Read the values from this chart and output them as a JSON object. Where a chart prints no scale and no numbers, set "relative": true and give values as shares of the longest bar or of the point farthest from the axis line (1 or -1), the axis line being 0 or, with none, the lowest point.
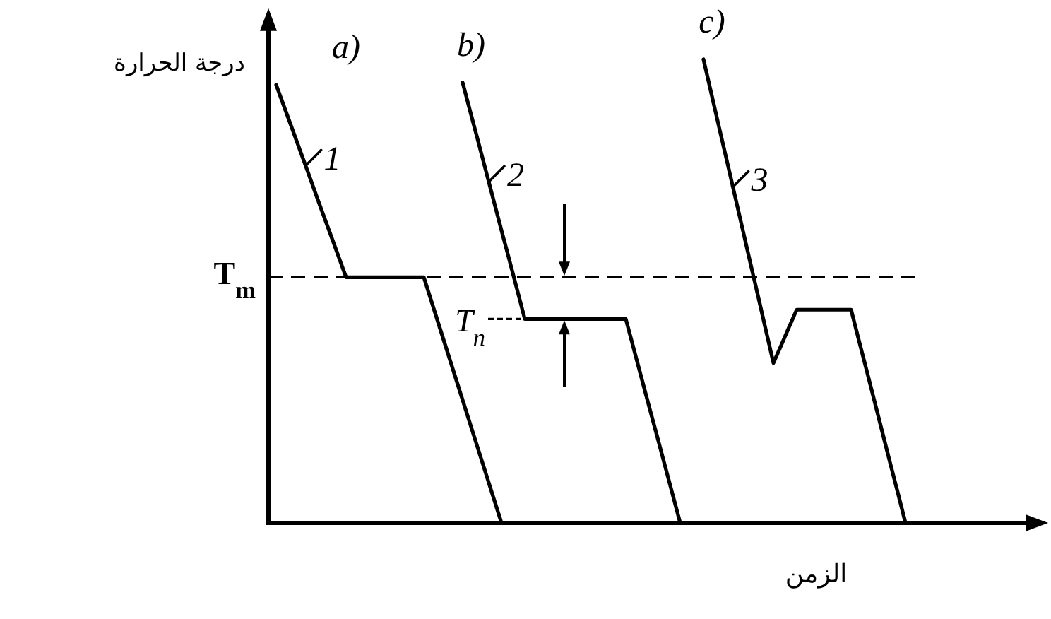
{
  "chart_data": {
    "type": "line",
    "relative": true,
    "xlabel": "الزمن",
    "ylabel": "درجة الحرارة",
    "categories": [
      null,
      null,
      null,
      null,
      null,
      null,
      null,
      null,
      null,
      null,
      null,
      null,
      null,
      null,
      null,
      null,
      null,
      null,
      null,
      null,
      null,
      null,
      null,
      null,
      null,
      null,
      null,
      null,
      null,
      null,
      null,
      null,
      null,
      null,
      null,
      null,
      null,
      null,
      null,
      null,
      null,
      null,
      null,
      null,
      null,
      null,
      null,
      null,
      null,
      null,
      null,
      null,
      null,
      null,
      null,
      null,
      null,
      null,
      null,
      null,
      null,
      null,
      null,
      null,
      null,
      null,
      null,
      null,
      null,
      null,
      null,
      null,
      null,
      null,
      null,
      null,
      null,
      null,
      null,
      null,
      null,
      null,
      null,
      null,
      null,
      null,
      null,
      null,
      null,
      null,
      null,
      null,
      null,
      null,
      null,
      null,
      null,
      null,
      null,
      null,
      null
    ],
    "series": [
      {
        "name": "1",
        "color": "#000000",
        "values": [
          null,
          0.945,
          0.899,
          0.853,
          0.807,
          0.761,
          0.714,
          0.668,
          0.622,
          0.576,
          0.53,
          0.53,
          0.53,
          0.53,
          0.53,
          0.53,
          0.53,
          0.53,
          0.53,
          0.53,
          0.53,
          0.477,
          0.424,
          0.371,
          0.318,
          0.265,
          0.212,
          0.159,
          0.106,
          0.053,
          0,
          null,
          null,
          null,
          null,
          null,
          null,
          null,
          null,
          null,
          null,
          null,
          null,
          null,
          null,
          null,
          null,
          null,
          null,
          null,
          null,
          null,
          null,
          null,
          null,
          null,
          null,
          null,
          null,
          null,
          null,
          null,
          null,
          null,
          null,
          null,
          null,
          null,
          null,
          null,
          null,
          null,
          null,
          null,
          null,
          null,
          null,
          null,
          null,
          null,
          null,
          null,
          null,
          null,
          null,
          null,
          null,
          null,
          null,
          null,
          null,
          null,
          null,
          null,
          null,
          null,
          null,
          null,
          null,
          null,
          null
        ]
      },
      {
        "name": "2",
        "color": "#000000",
        "values": [
          null,
          null,
          null,
          null,
          null,
          null,
          null,
          null,
          null,
          null,
          null,
          null,
          null,
          null,
          null,
          null,
          null,
          null,
          null,
          null,
          null,
          null,
          null,
          null,
          null,
          0.95,
          0.886,
          0.823,
          0.759,
          0.695,
          0.631,
          0.568,
          0.504,
          0.44,
          0.44,
          0.44,
          0.44,
          0.44,
          0.44,
          0.44,
          0.44,
          0.44,
          0.44,
          0.44,
          0.44,
          0.44,
          0.44,
          0.377,
          0.314,
          0.251,
          0.189,
          0.126,
          0.063,
          0,
          null,
          null,
          null,
          null,
          null,
          null,
          null,
          null,
          null,
          null,
          null,
          null,
          null,
          null,
          null,
          null,
          null,
          null,
          null,
          null,
          null,
          null,
          null,
          null,
          null,
          null,
          null,
          null,
          null,
          null,
          null,
          null,
          null,
          null,
          null,
          null,
          null,
          null,
          null,
          null,
          null,
          null,
          null,
          null,
          null,
          null,
          null
        ]
      },
      {
        "name": "3",
        "color": "#000000",
        "values": [
          null,
          null,
          null,
          null,
          null,
          null,
          null,
          null,
          null,
          null,
          null,
          null,
          null,
          null,
          null,
          null,
          null,
          null,
          null,
          null,
          null,
          null,
          null,
          null,
          null,
          null,
          null,
          null,
          null,
          null,
          null,
          null,
          null,
          null,
          null,
          null,
          null,
          null,
          null,
          null,
          null,
          null,
          null,
          null,
          null,
          null,
          null,
          null,
          null,
          null,
          null,
          null,
          null,
          null,
          null,
          null,
          1,
          0.927,
          0.854,
          0.782,
          0.709,
          0.636,
          0.563,
          0.491,
          0.418,
          0.345,
          0.383,
          0.422,
          0.46,
          0.46,
          0.46,
          0.46,
          0.46,
          0.46,
          0.46,
          0.46,
          0.394,
          0.329,
          0.263,
          0.197,
          0.131,
          0.066,
          0,
          null,
          null,
          null,
          null,
          null,
          null,
          null,
          null,
          null,
          null,
          null,
          null,
          null,
          null,
          null,
          null,
          null,
          null
        ]
      }
    ],
    "ref_lines": [
      {
        "axis": "y",
        "value": 0.53,
        "label": "T$_{m}$",
        "line_style": "dashed"
      },
      {
        "axis": "y",
        "value": 0.44,
        "label": "T$_{n}$",
        "line_style": "dashed"
      }
    ],
    "annotations": [
      "a)",
      "b)",
      "c)"
    ],
    "legend": "top",
    "marker": "none",
    "line_style": "solid"
  }
}
